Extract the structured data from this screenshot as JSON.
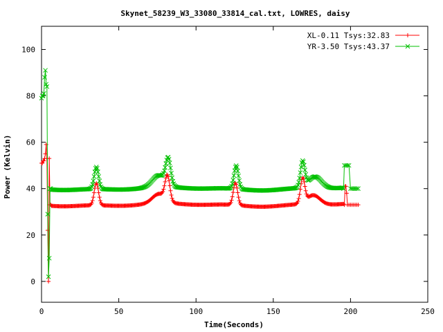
{
  "chart_data": {
    "type": "line",
    "title": "Skynet_58239_W3_33080_33814_cal.txt, LOWRES, daisy",
    "xlabel": "Time(Seconds)",
    "ylabel": "Power (Kelvin)",
    "xlim": [
      0,
      250
    ],
    "ylim": [
      -9,
      110
    ],
    "xticks": [
      0,
      50,
      100,
      150,
      200,
      250
    ],
    "yticks": [
      0,
      20,
      40,
      60,
      80,
      100
    ],
    "grid": false,
    "legend_position": "top-right",
    "series": [
      {
        "name": "XL-0.11 Tsys:32.83",
        "color": "#ff0000",
        "marker": "plus",
        "baseline": 33,
        "start_points": [
          [
            0,
            51
          ],
          [
            0.5,
            51
          ],
          [
            1,
            52
          ],
          [
            1.5,
            52
          ],
          [
            2,
            53
          ],
          [
            2.5,
            55
          ],
          [
            3,
            59
          ],
          [
            3.5,
            53
          ],
          [
            4,
            22
          ],
          [
            4.5,
            0
          ],
          [
            5,
            53
          ],
          [
            5.5,
            33
          ],
          [
            6,
            33
          ]
        ],
        "peaks": [
          {
            "center": 35.5,
            "height": 42.5,
            "width": 2.0
          },
          {
            "center": 81.5,
            "height": 43.5,
            "width": 2.2
          },
          {
            "center": 125.5,
            "height": 42.5,
            "width": 2.0
          },
          {
            "center": 169,
            "height": 43.5,
            "width": 2.0
          }
        ],
        "broad_bumps": [
          {
            "center": 76,
            "height": 4,
            "width": 6
          },
          {
            "center": 176,
            "height": 4,
            "width": 6
          }
        ],
        "tail_points": [
          [
            196,
            33
          ],
          [
            196.5,
            41
          ],
          [
            197,
            41
          ],
          [
            197.5,
            38
          ],
          [
            198,
            33
          ],
          [
            199,
            33
          ],
          [
            200,
            33
          ],
          [
            201,
            33
          ],
          [
            202,
            33
          ],
          [
            203,
            33
          ],
          [
            204,
            33
          ],
          [
            205,
            33
          ]
        ]
      },
      {
        "name": "YR-3.50 Tsys:43.37",
        "color": "#00c000",
        "marker": "cross",
        "baseline": 40,
        "start_points": [
          [
            0,
            79
          ],
          [
            0.5,
            80
          ],
          [
            1,
            80
          ],
          [
            1.5,
            81
          ],
          [
            2,
            88
          ],
          [
            2.5,
            91
          ],
          [
            3,
            85
          ],
          [
            3.5,
            84
          ],
          [
            4,
            29
          ],
          [
            4.5,
            2
          ],
          [
            5,
            10
          ],
          [
            5.5,
            40
          ],
          [
            6,
            40
          ]
        ],
        "peaks": [
          {
            "center": 35.5,
            "height": 49.5,
            "width": 2.0
          },
          {
            "center": 82,
            "height": 51,
            "width": 2.3
          },
          {
            "center": 126,
            "height": 50,
            "width": 2.0
          },
          {
            "center": 169,
            "height": 51,
            "width": 2.0
          }
        ],
        "broad_bumps": [
          {
            "center": 76,
            "height": 5,
            "width": 6
          },
          {
            "center": 177,
            "height": 5,
            "width": 6
          }
        ],
        "tail_points": [
          [
            195.5,
            40
          ],
          [
            196,
            50
          ],
          [
            197,
            50
          ],
          [
            198,
            50
          ],
          [
            199,
            50
          ],
          [
            200,
            40
          ],
          [
            201,
            40
          ],
          [
            202,
            40
          ],
          [
            203,
            40
          ],
          [
            204,
            40
          ],
          [
            205,
            40
          ]
        ]
      }
    ]
  }
}
